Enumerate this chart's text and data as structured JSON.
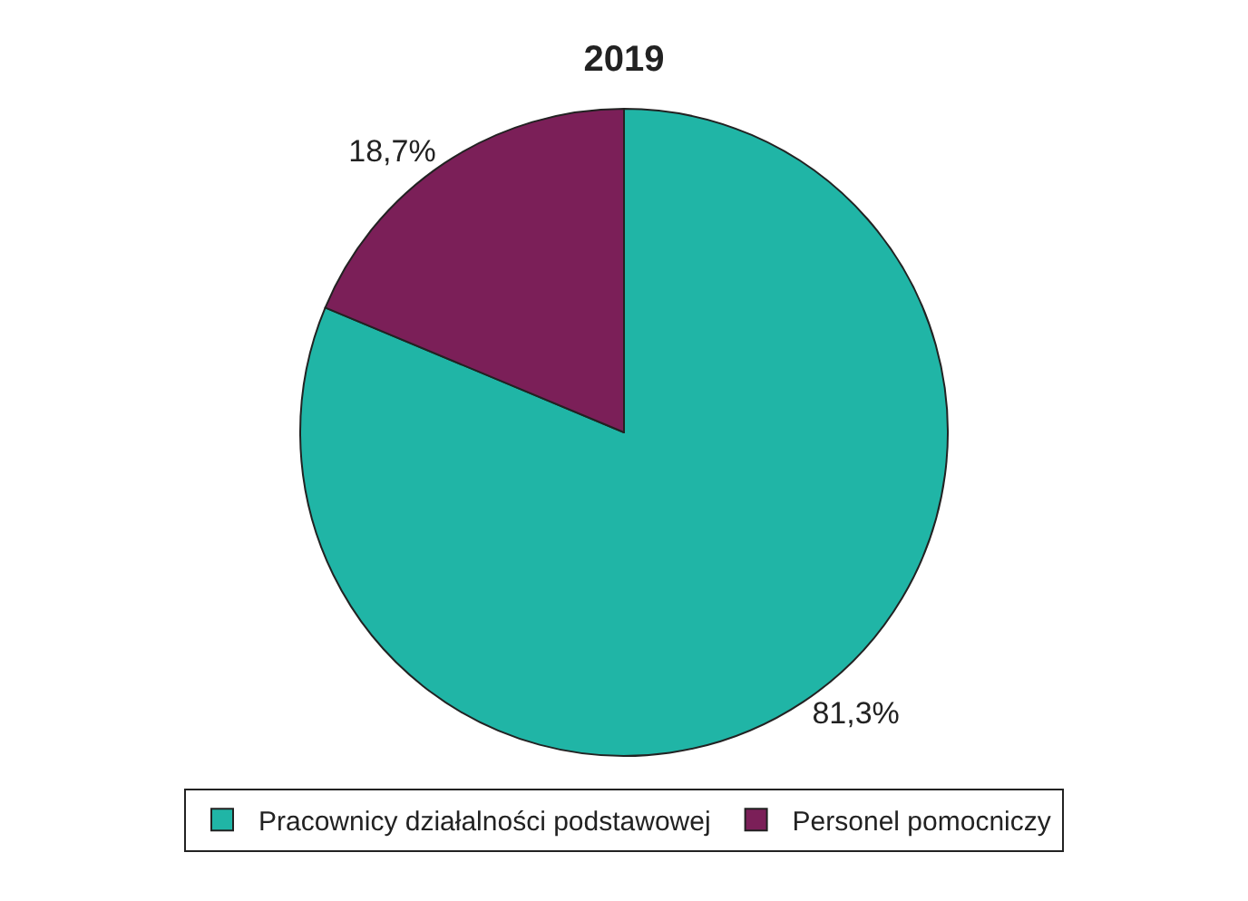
{
  "chart_data": {
    "type": "pie",
    "title": "2019",
    "categories": [
      "Pracownicy działalności podstawowej",
      "Personel pomocniczy"
    ],
    "values": [
      81.3,
      18.7
    ],
    "value_labels": [
      "81,3%",
      "18,7%"
    ],
    "colors": [
      "#20b5a6",
      "#7b1f58"
    ],
    "legend": "bottom"
  }
}
